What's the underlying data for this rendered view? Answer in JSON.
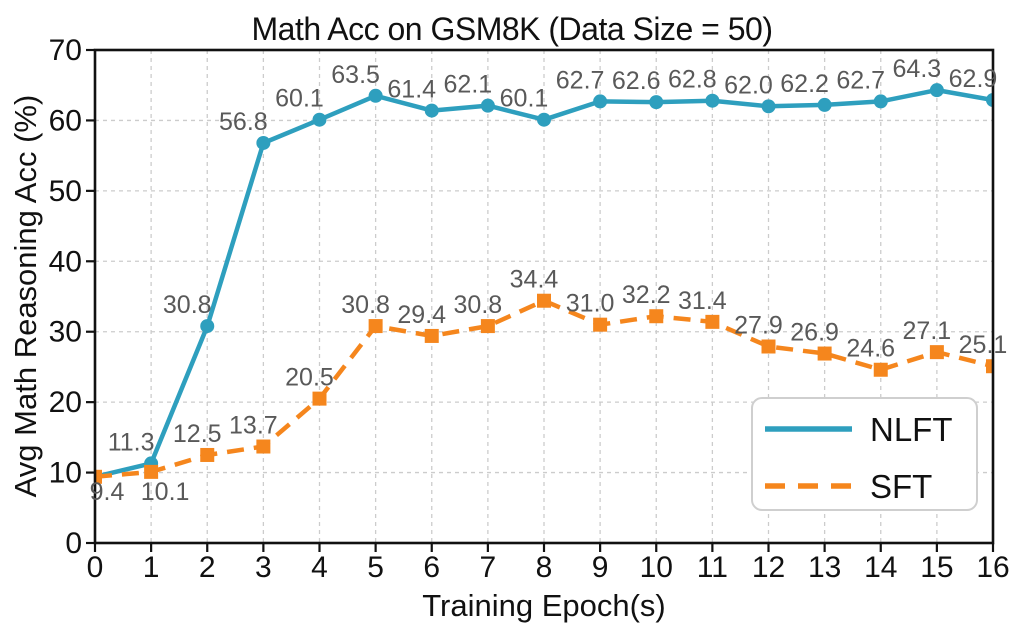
{
  "chart_data": {
    "type": "line",
    "title": "Math Acc on GSM8K (Data Size = 50)",
    "xlabel": "Training Epoch(s)",
    "ylabel": "Avg Math Reasoning Acc (%)",
    "x": [
      0,
      1,
      2,
      3,
      4,
      5,
      6,
      7,
      8,
      9,
      10,
      11,
      12,
      13,
      14,
      15,
      16
    ],
    "xlim": [
      0,
      16
    ],
    "ylim": [
      0,
      70
    ],
    "xticks": [
      "0",
      "1",
      "2",
      "3",
      "4",
      "5",
      "6",
      "7",
      "8",
      "9",
      "10",
      "11",
      "12",
      "13",
      "14",
      "15",
      "16"
    ],
    "yticks": [
      "0",
      "10",
      "20",
      "30",
      "40",
      "50",
      "60",
      "70"
    ],
    "grid": true,
    "legend_position": "lower right",
    "colors": {
      "background": "#ffffff",
      "grid": "#cccccc",
      "axis": "#111111",
      "data_label": "#595959",
      "legend_border": "#cfcfcf",
      "legend_background": "#ffffff"
    },
    "series": [
      {
        "name": "NLFT",
        "color": "#2E9FBE",
        "line_style": "solid",
        "marker": "circle",
        "values": [
          9.4,
          11.3,
          30.8,
          56.8,
          60.1,
          63.5,
          61.4,
          62.1,
          60.1,
          62.7,
          62.6,
          62.8,
          62.0,
          62.2,
          62.7,
          64.3,
          62.9
        ],
        "labels": [
          "",
          "11.3",
          "30.8",
          "56.8",
          "60.1",
          "63.5",
          "61.4",
          "62.1",
          "60.1",
          "62.7",
          "62.6",
          "62.8",
          "62.0",
          "62.2",
          "62.7",
          "64.3",
          "62.9"
        ]
      },
      {
        "name": "SFT",
        "color": "#F5861D",
        "line_style": "dashed",
        "marker": "square",
        "values": [
          9.4,
          10.1,
          12.5,
          13.7,
          20.5,
          30.8,
          29.4,
          30.8,
          34.4,
          31.0,
          32.2,
          31.4,
          27.9,
          26.9,
          24.6,
          27.1,
          25.1
        ],
        "labels": [
          "9.4",
          "10.1",
          "12.5",
          "13.7",
          "20.5",
          "30.8",
          "29.4",
          "30.8",
          "34.4",
          "31.0",
          "32.2",
          "31.4",
          "27.9",
          "26.9",
          "24.6",
          "27.1",
          "25.1"
        ]
      }
    ]
  }
}
